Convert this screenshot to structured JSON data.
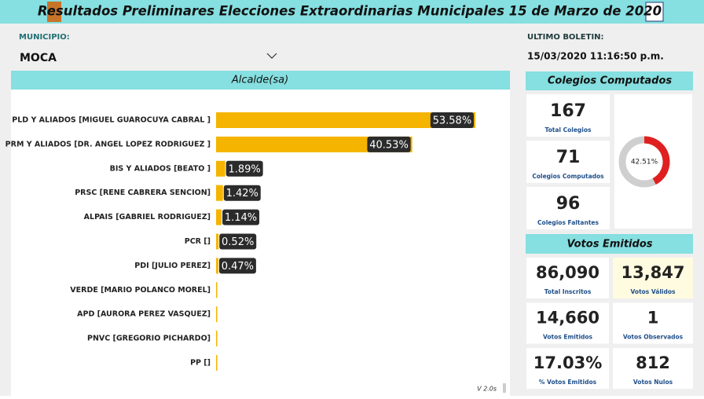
{
  "header": {
    "title": "Resultados Preliminares Elecciones Extraordinarias Municipales 15 de Marzo de 2020"
  },
  "filters": {
    "municipio_label": "MUNICIPIO:",
    "municipio": "MOCA",
    "boletin_label": "ULTIMO BOLETIN:",
    "boletin": "15/03/2020 11:16:50 p.m."
  },
  "chart_data": {
    "type": "bar",
    "title": "Alcalde(sa)",
    "color": "#f5b400",
    "categories": [
      "PLD Y ALIADOS [MIGUEL GUAROCUYA CABRAL ]",
      "PRM Y ALIADOS [DR. ANGEL LOPEZ RODRIGUEZ ]",
      "BIS Y ALIADOS [BEATO ]",
      "PRSC [RENE CABRERA SENCION]",
      "ALPAIS [GABRIEL RODRIGUEZ]",
      "PCR []",
      "PDI [JULIO PEREZ]",
      "VERDE [MARIO POLANCO MOREL]",
      "APD [AURORA PEREZ VASQUEZ]",
      "PNVC [GREGORIO PICHARDO]",
      "PP []"
    ],
    "values": [
      53.58,
      40.53,
      1.89,
      1.42,
      1.14,
      0.52,
      0.47,
      0.05,
      0.05,
      0.05,
      0.05
    ],
    "value_labels": [
      "53.58%",
      "40.53%",
      "1.89%",
      "1.42%",
      "1.14%",
      "0.52%",
      "0.47%",
      null,
      null,
      null,
      null
    ]
  },
  "colegios": {
    "title": "Colegios Computados",
    "cards": [
      {
        "value": 167,
        "label": "Total Colegios"
      },
      {
        "value": 71,
        "label": "Colegios Computados"
      },
      {
        "value": 96,
        "label": "Colegios Faltantes"
      }
    ],
    "donut": {
      "value": 42.51,
      "label": "42.51%",
      "color": "#e02020"
    }
  },
  "votos": {
    "title": "Votos Emitidos",
    "cards": [
      {
        "value": "86,090",
        "label": "Total Inscritos"
      },
      {
        "value": "13,847",
        "label": "Votos Válidos"
      },
      {
        "value": "14,660",
        "label": "Votos Emitidos"
      },
      {
        "value": "1",
        "label": "Votos Observados"
      },
      {
        "value": "17.03%",
        "label": "% Votos Emitidos"
      },
      {
        "value": "812",
        "label": "Votos Nulos"
      }
    ]
  },
  "version": "V 2.0s"
}
